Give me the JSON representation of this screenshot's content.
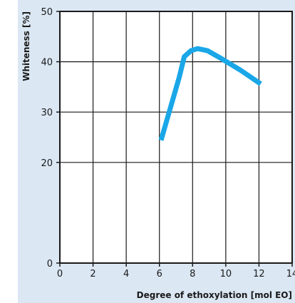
{
  "chart_data": {
    "type": "line",
    "title": "",
    "xlabel": "Degree of ethoxylation [mol EO]",
    "ylabel": "Whiteness [%]",
    "xlim": [
      0,
      14
    ],
    "ylim": [
      0,
      50
    ],
    "x_ticks": [
      0,
      2,
      4,
      6,
      8,
      10,
      12,
      14
    ],
    "y_ticks": [
      0,
      20,
      30,
      40,
      50
    ],
    "x_tick_labels": [
      "0",
      "2",
      "4",
      "6",
      "8",
      "10",
      "12",
      "14"
    ],
    "y_tick_labels": [
      "0",
      "20",
      "30",
      "40",
      "50"
    ],
    "grid": true,
    "legend": "none",
    "series": [
      {
        "x": [
          6.1,
          7.2,
          7.5,
          7.9,
          8.3,
          8.9,
          9.8,
          10.9,
          12.1
        ],
        "y": [
          24.4,
          37.0,
          41.0,
          42.2,
          42.6,
          42.2,
          40.5,
          38.3,
          35.6
        ],
        "color": "#1aa7e8"
      }
    ],
    "colors": {
      "background": "#dbe7f3",
      "plot_area": "#ffffff",
      "grid": "#1a1a1a",
      "line": "#1aa7e8"
    }
  }
}
